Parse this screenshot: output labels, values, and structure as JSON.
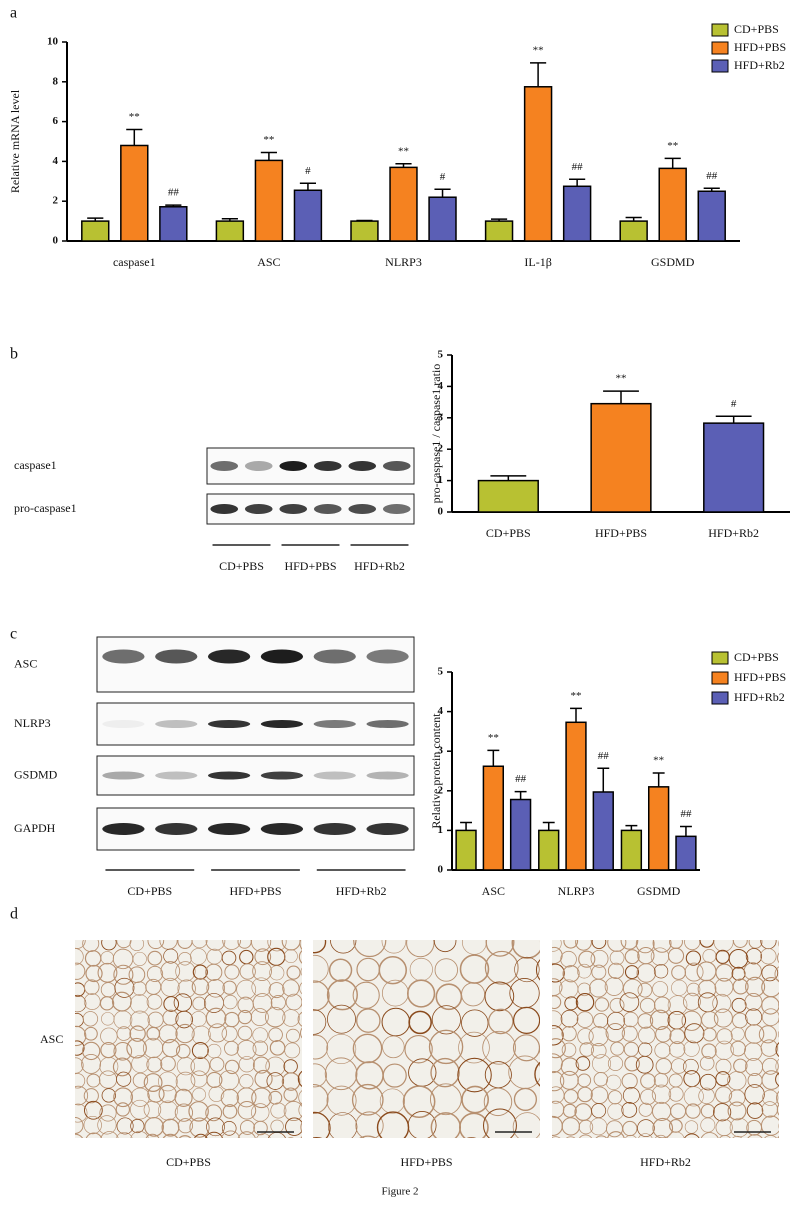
{
  "panels": [
    "a",
    "b",
    "c",
    "d"
  ],
  "blot_b": {
    "rows": [
      "caspase1",
      "pro-caspase1"
    ],
    "groups": [
      "CD+PBS",
      "HFD+PBS",
      "HFD+Rb2"
    ]
  },
  "blot_c": {
    "rows": [
      "ASC",
      "NLRP3",
      "GSDMD",
      "GAPDH"
    ],
    "groups": [
      "CD+PBS",
      "HFD+PBS",
      "HFD+Rb2"
    ]
  },
  "histology": {
    "stain": "ASC",
    "groups": [
      "CD+PBS",
      "HFD+PBS",
      "HFD+Rb2"
    ]
  },
  "caption": "Figure 2",
  "chart_data": [
    {
      "type": "bar",
      "y_label": "Relative mRNA level",
      "categories": [
        "caspase1",
        "ASC",
        "NLRP3",
        "IL-1β",
        "GSDMD"
      ],
      "ylim": [
        0,
        10
      ],
      "yticks": [
        0,
        2,
        4,
        6,
        8,
        10
      ],
      "legend": "upper right",
      "series": [
        {
          "name": "CD+PBS",
          "color": "#b8c132",
          "values": [
            1,
            1,
            1,
            1,
            1
          ],
          "errors": [
            0.15,
            0.12,
            0.03,
            0.1,
            0.18
          ],
          "annotations": [
            null,
            null,
            null,
            null,
            null
          ]
        },
        {
          "name": "HFD+PBS",
          "color": "#f58220",
          "values": [
            4.8,
            4.05,
            3.7,
            7.75,
            3.65
          ],
          "errors": [
            0.8,
            0.4,
            0.18,
            1.2,
            0.5
          ],
          "annotations": [
            "**",
            "**",
            "**",
            "**",
            "**"
          ]
        },
        {
          "name": "HFD+Rb2",
          "color": "#5b5fb5",
          "values": [
            1.72,
            2.55,
            2.2,
            2.75,
            2.5
          ],
          "errors": [
            0.08,
            0.35,
            0.4,
            0.35,
            0.15
          ],
          "annotations": [
            "##",
            "#",
            "#",
            "##",
            "##"
          ]
        }
      ]
    },
    {
      "type": "bar",
      "y_label": "pro-caspase1 / caspase1 ratio",
      "categories": [
        "CD+PBS",
        "HFD+PBS",
        "HFD+Rb2"
      ],
      "ylim": [
        0,
        5
      ],
      "yticks": [
        0,
        1,
        2,
        3,
        4,
        5
      ],
      "values": [
        1,
        3.45,
        2.83
      ],
      "errors": [
        0.15,
        0.4,
        0.22
      ],
      "colors": [
        "#b8c132",
        "#f58220",
        "#5b5fb5"
      ],
      "annotations": [
        null,
        "**",
        "#"
      ]
    },
    {
      "type": "bar",
      "y_label": "Relative protein content",
      "categories": [
        "ASC",
        "NLRP3",
        "GSDMD"
      ],
      "ylim": [
        0,
        5
      ],
      "yticks": [
        0,
        1,
        2,
        3,
        4,
        5
      ],
      "legend": "upper right",
      "series": [
        {
          "name": "CD+PBS",
          "color": "#b8c132",
          "values": [
            1,
            1,
            1
          ],
          "errors": [
            0.2,
            0.2,
            0.12
          ],
          "annotations": [
            null,
            null,
            null
          ]
        },
        {
          "name": "HFD+PBS",
          "color": "#f58220",
          "values": [
            2.62,
            3.73,
            2.1
          ],
          "errors": [
            0.4,
            0.35,
            0.35
          ],
          "annotations": [
            "**",
            "**",
            "**"
          ]
        },
        {
          "name": "HFD+Rb2",
          "color": "#5b5fb5",
          "values": [
            1.78,
            1.97,
            0.85
          ],
          "errors": [
            0.2,
            0.6,
            0.25
          ],
          "annotations": [
            "##",
            "##",
            "##"
          ]
        }
      ]
    }
  ]
}
